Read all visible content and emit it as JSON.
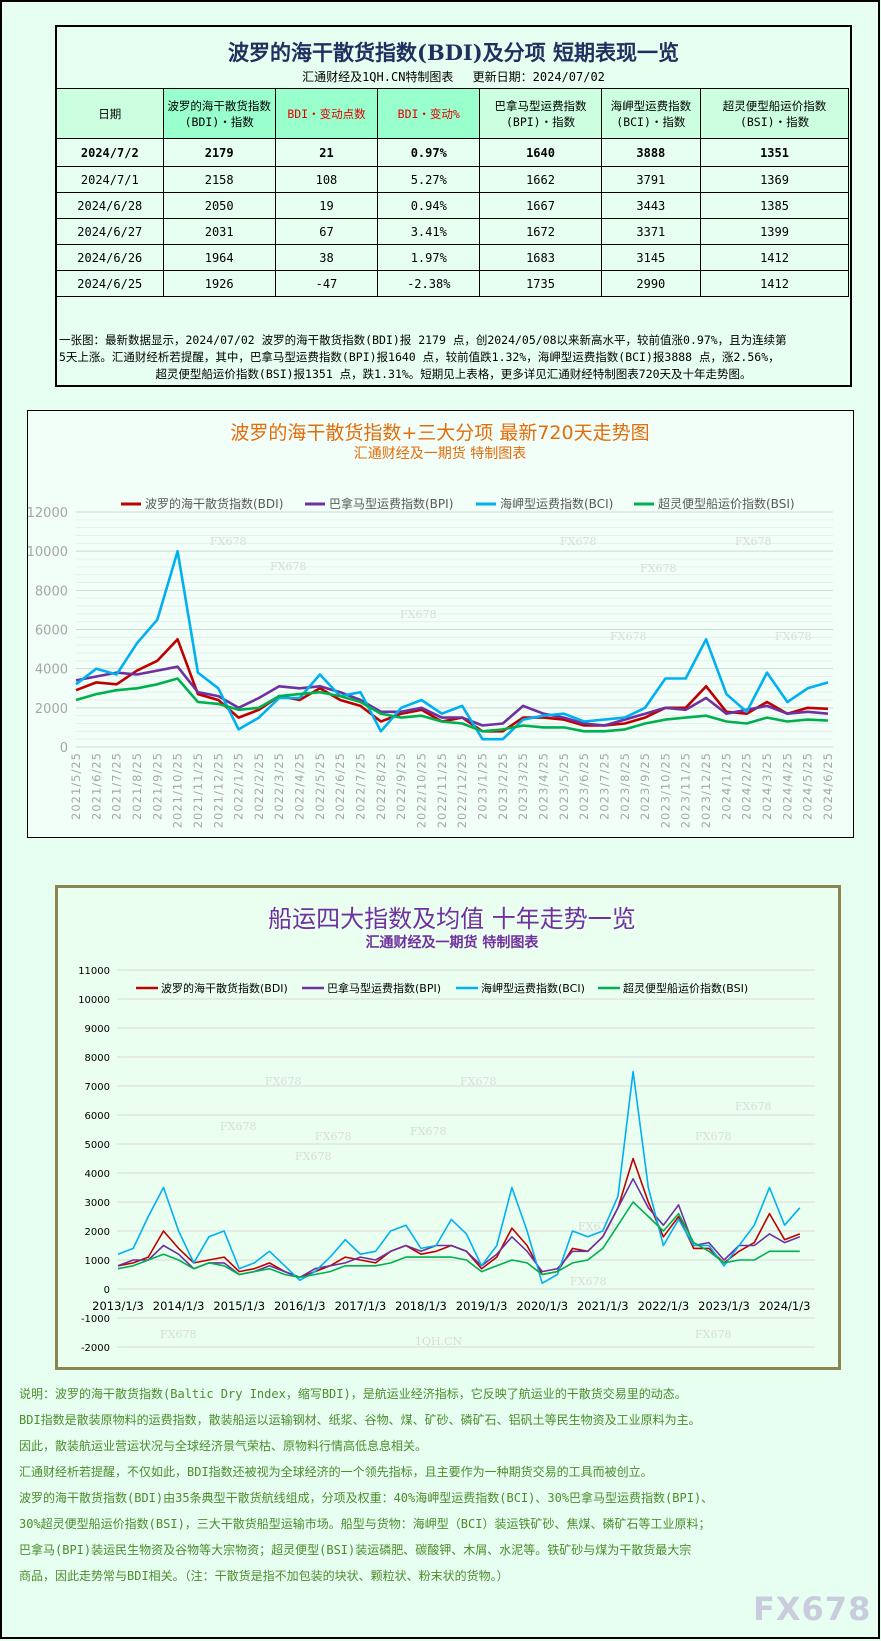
{
  "table": {
    "title": "波罗的海干散货指数(BDI)及分项 短期表现一览",
    "subtitle": "汇通财经及1QH.CN特制图表　 更新日期：2024/07/02",
    "headers": [
      "日期",
      "波罗的海干散货指数(BDI)・指数",
      "BDI・变动点数",
      "BDI・变动%",
      "巴拿马型运费指数(BPI)・指数",
      "海岬型运费指数(BCI)・指数",
      "超灵便型船运价指数(BSI)・指数"
    ],
    "rows": [
      [
        "2024/7/2",
        "2179",
        "21",
        "0.97%",
        "1640",
        "3888",
        "1351"
      ],
      [
        "2024/7/1",
        "2158",
        "108",
        "5.27%",
        "1662",
        "3791",
        "1369"
      ],
      [
        "2024/6/28",
        "2050",
        "19",
        "0.94%",
        "1667",
        "3443",
        "1385"
      ],
      [
        "2024/6/27",
        "2031",
        "67",
        "3.41%",
        "1672",
        "3371",
        "1399"
      ],
      [
        "2024/6/26",
        "1964",
        "38",
        "1.97%",
        "1683",
        "3145",
        "1412"
      ],
      [
        "2024/6/25",
        "1926",
        "-47",
        "-2.38%",
        "1735",
        "2990",
        "1412"
      ]
    ],
    "summary": [
      "一张图：最新数据显示，2024/07/02 波罗的海干散货指数(BDI)报 2179 点，创2024/05/08以来新高水平，较前值涨0.97%，且为连续第",
      "5天上涨。汇通财经析若提醒，其中，巴拿马型运费指数(BPI)报1640 点，较前值跌1.32%，海岬型运费指数(BCI)报3888 点，涨2.56%，",
      "超灵便型船运价指数(BSI)报1351 点，跌1.31%。短期见上表格，更多详见汇通财经特制图表720天及十年走势图。"
    ]
  },
  "colors": {
    "BDI": "#c00000",
    "BPI": "#7030a0",
    "BCI": "#00b0f0",
    "BSI": "#00b050"
  },
  "chart_data": [
    {
      "type": "line",
      "title": "波罗的海干散货指数+三大分项  最新720天走势图",
      "subtitle": "汇通财经及一期货  特制图表",
      "ylim": [
        0,
        12000
      ],
      "yticks": [
        0,
        2000,
        4000,
        6000,
        8000,
        10000,
        12000
      ],
      "grid": true,
      "legend": "top",
      "x": [
        "2021/5/25",
        "2021/6/25",
        "2021/7/25",
        "2021/8/25",
        "2021/9/25",
        "2021/10/25",
        "2021/11/25",
        "2021/12/25",
        "2022/1/25",
        "2022/2/25",
        "2022/3/25",
        "2022/4/25",
        "2022/5/25",
        "2022/6/25",
        "2022/7/25",
        "2022/8/25",
        "2022/9/25",
        "2022/10/25",
        "2022/11/25",
        "2022/12/25",
        "2023/1/25",
        "2023/2/25",
        "2023/3/25",
        "2023/4/25",
        "2023/5/25",
        "2023/6/25",
        "2023/7/25",
        "2023/8/25",
        "2023/9/25",
        "2023/10/25",
        "2023/11/25",
        "2023/12/25",
        "2024/1/25",
        "2024/2/25",
        "2024/3/25",
        "2024/4/25",
        "2024/5/25",
        "2024/6/25"
      ],
      "series": [
        {
          "name": "波罗的海干散货指数(BDI)",
          "key": "BDI",
          "values": [
            2900,
            3300,
            3200,
            3900,
            4400,
            5500,
            2700,
            2400,
            1500,
            1900,
            2600,
            2400,
            3000,
            2400,
            2100,
            1300,
            1700,
            1900,
            1300,
            1500,
            800,
            800,
            1500,
            1500,
            1400,
            1100,
            1100,
            1200,
            1500,
            2000,
            2000,
            3100,
            1800,
            1700,
            2300,
            1700,
            2000,
            1950
          ]
        },
        {
          "name": "巴拿马型运费指数(BPI)",
          "key": "BPI",
          "values": [
            3400,
            3600,
            3800,
            3700,
            3900,
            4100,
            2800,
            2600,
            2000,
            2500,
            3100,
            3000,
            3100,
            2800,
            2400,
            1800,
            1800,
            2000,
            1500,
            1500,
            1100,
            1200,
            2100,
            1700,
            1500,
            1200,
            1100,
            1400,
            1700,
            2000,
            1900,
            2500,
            1700,
            1900,
            2100,
            1700,
            1800,
            1700
          ]
        },
        {
          "name": "海岬型运费指数(BCI)",
          "key": "BCI",
          "values": [
            3200,
            4000,
            3700,
            5300,
            6500,
            10000,
            3800,
            3000,
            900,
            1500,
            2500,
            2500,
            3700,
            2600,
            2800,
            800,
            2000,
            2400,
            1700,
            2100,
            400,
            400,
            1400,
            1600,
            1700,
            1300,
            1400,
            1500,
            2000,
            3500,
            3500,
            5500,
            2700,
            1800,
            3800,
            2300,
            3000,
            3300
          ]
        },
        {
          "name": "超灵便型船运价指数(BSI)",
          "key": "BSI",
          "values": [
            2400,
            2700,
            2900,
            3000,
            3200,
            3500,
            2300,
            2200,
            1900,
            2000,
            2600,
            2700,
            2800,
            2600,
            2300,
            1700,
            1500,
            1600,
            1300,
            1200,
            800,
            900,
            1100,
            1000,
            1000,
            800,
            800,
            900,
            1200,
            1400,
            1500,
            1600,
            1300,
            1200,
            1500,
            1300,
            1400,
            1350
          ]
        }
      ]
    },
    {
      "type": "line",
      "title": "船运四大指数及均值 十年走势一览",
      "subtitle": "汇通财经及一期货 特制图表",
      "ylim": [
        -2000,
        11000
      ],
      "yticks": [
        -2000,
        -1000,
        0,
        1000,
        2000,
        3000,
        4000,
        5000,
        6000,
        7000,
        8000,
        9000,
        10000,
        11000
      ],
      "grid": true,
      "legend": "top",
      "xticks": [
        "2013/1/3",
        "2014/1/3",
        "2015/1/3",
        "2016/1/3",
        "2017/1/3",
        "2018/1/3",
        "2019/1/3",
        "2020/1/3",
        "2021/1/3",
        "2022/1/3",
        "2023/1/3",
        "2024/1/3"
      ],
      "x_start": "2013/1",
      "x_step": "quarter",
      "series": [
        {
          "name": "波罗的海干散货指数(BDI)",
          "key": "BDI",
          "values": [
            800,
            900,
            1100,
            2000,
            1400,
            900,
            1000,
            1100,
            600,
            700,
            900,
            600,
            400,
            600,
            800,
            1100,
            1000,
            900,
            1300,
            1500,
            1200,
            1300,
            1500,
            1300,
            700,
            1100,
            2100,
            1500,
            500,
            600,
            1400,
            1300,
            1800,
            2800,
            4500,
            3000,
            1800,
            2500,
            1400,
            1400,
            900,
            1300,
            1600,
            2600,
            1700,
            1900
          ]
        },
        {
          "name": "巴拿马型运费指数(BPI)",
          "key": "BPI",
          "values": [
            800,
            1000,
            1000,
            1500,
            1200,
            700,
            900,
            900,
            500,
            600,
            800,
            600,
            400,
            700,
            800,
            900,
            1100,
            1000,
            1300,
            1500,
            1300,
            1500,
            1500,
            1300,
            800,
            1200,
            1800,
            1300,
            600,
            700,
            1300,
            1300,
            1800,
            2800,
            3800,
            2800,
            2200,
            2900,
            1500,
            1600,
            1000,
            1500,
            1500,
            1900,
            1600,
            1800
          ]
        },
        {
          "name": "海岬型运费指数(BCI)",
          "key": "BCI",
          "values": [
            1200,
            1400,
            2500,
            3500,
            2000,
            900,
            1800,
            2000,
            700,
            900,
            1300,
            800,
            300,
            600,
            1100,
            1700,
            1200,
            1300,
            2000,
            2200,
            1400,
            1500,
            2400,
            1900,
            800,
            1500,
            3500,
            2000,
            200,
            500,
            2000,
            1800,
            2000,
            3200,
            7500,
            3500,
            1500,
            2400,
            1500,
            1500,
            800,
            1500,
            2200,
            3500,
            2200,
            2800
          ]
        },
        {
          "name": "超灵便型船运价指数(BSI)",
          "key": "BSI",
          "values": [
            700,
            800,
            1000,
            1200,
            1000,
            700,
            900,
            800,
            500,
            600,
            700,
            500,
            400,
            500,
            600,
            800,
            800,
            800,
            900,
            1100,
            1100,
            1100,
            1100,
            1000,
            600,
            800,
            1000,
            900,
            500,
            600,
            900,
            1000,
            1400,
            2200,
            3000,
            2500,
            2000,
            2600,
            1600,
            1300,
            900,
            1000,
            1000,
            1300,
            1300,
            1300
          ]
        }
      ]
    }
  ],
  "notes": [
    "说明：波罗的海干散货指数(Baltic Dry Index，缩写BDI)，是航运业经济指标，它反映了航运业的干散货交易里的动态。",
    "BDI指数是散装原物料的运费指数，散装船运以运输钢材、纸浆、谷物、煤、矿砂、磷矿石、铝矾土等民生物资及工业原料为主。",
    "因此，散装航运业营运状况与全球经济景气荣枯、原物料行情高低息息相关。",
    "汇通财经析若提醒，不仅如此，BDI指数还被视为全球经济的一个领先指标，且主要作为一种期货交易的工具而被创立。",
    "波罗的海干散货指数(BDI)由35条典型干散货航线组成，分项及权重：40%海岬型运费指数(BCI)、30%巴拿马型运费指数(BPI)、",
    "30%超灵便型船运价指数(BSI)，三大干散货船型运输市场。船型与货物：海岬型（BCI）装运铁矿砂、焦煤、磷矿石等工业原料；",
    "巴拿马(BPI)装运民生物资及谷物等大宗物资；超灵便型(BSI)装运磷肥、碳酸钾、木屑、水泥等。铁矿砂与煤为干散货最大宗",
    "商品，因此走势常与BDI相关。（注：干散货是指不加包装的块状、颗粒状、粉末状的货物。）"
  ],
  "watermark": "FX678",
  "watermark2": "1QH.CN"
}
